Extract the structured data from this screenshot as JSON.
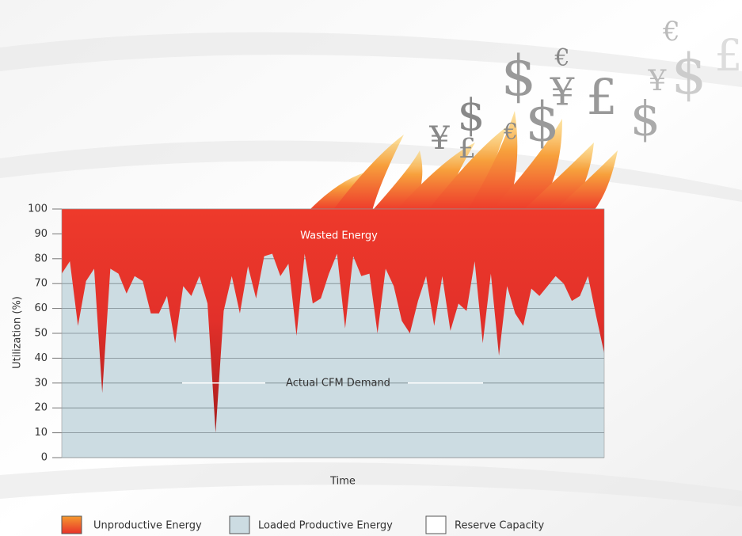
{
  "chart_data": {
    "type": "area",
    "y_label": "Utilization (%)",
    "x_label": "Time",
    "categories": [
      null,
      null,
      null,
      null,
      null,
      null,
      null,
      null,
      null,
      null,
      null,
      null,
      null,
      null,
      null,
      null,
      null,
      null,
      null,
      null,
      null,
      null,
      null,
      null,
      null,
      null,
      null,
      null,
      null,
      null,
      null,
      null,
      null,
      null,
      null,
      null,
      null,
      null,
      null,
      null,
      null,
      null,
      null,
      null,
      null,
      null,
      null,
      null,
      null,
      null,
      null,
      null,
      null,
      null,
      null,
      null,
      null,
      null,
      null,
      null,
      null,
      null,
      null,
      null,
      null,
      null,
      null,
      null
    ],
    "series": [
      {
        "name": "Actual CFM Demand",
        "color": "#ccdce2",
        "values": [
          74,
          79,
          53,
          71,
          76,
          26,
          76,
          74,
          66,
          73,
          71,
          58,
          58,
          65,
          46,
          69,
          65,
          73,
          62,
          10,
          59,
          73,
          58,
          77,
          64,
          81,
          82,
          73,
          78,
          49,
          82,
          62,
          64,
          74,
          82,
          52,
          81,
          73,
          74,
          50,
          76,
          69,
          55,
          50,
          63,
          73,
          53,
          73,
          51,
          62,
          59,
          79,
          46,
          74,
          41,
          69,
          58,
          53,
          68,
          65,
          69,
          73,
          70,
          63,
          65,
          73,
          57,
          42
        ]
      }
    ],
    "waste_label": "Wasted Energy",
    "waste_color": "#e8312a",
    "ylim": [
      0,
      100
    ],
    "yticks": [
      0,
      10,
      20,
      30,
      40,
      50,
      60,
      70,
      80,
      90,
      100
    ],
    "grid": true,
    "legend": [
      {
        "name": "Unproductive Energy",
        "color": "#e8312a"
      },
      {
        "name": "Loaded Productive Energy",
        "color": "#ccdce2"
      },
      {
        "name": "Reserve Capacity",
        "color": "#ffffff"
      }
    ],
    "symbols": [
      "€",
      "$",
      "€",
      "¥",
      "£",
      "¥",
      "$",
      "£",
      "$",
      "¥",
      "$",
      "£",
      "€",
      "$"
    ]
  }
}
